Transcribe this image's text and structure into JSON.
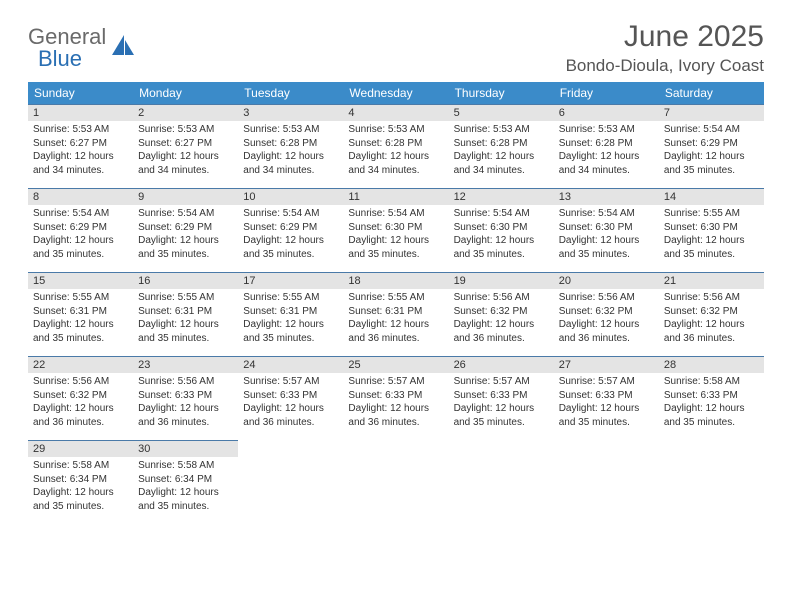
{
  "logo": {
    "text1": "General",
    "text2": "Blue"
  },
  "title": "June 2025",
  "location": "Bondo-Dioula, Ivory Coast",
  "colors": {
    "header_bg": "#3b8bc9",
    "header_text": "#ffffff",
    "daynum_bg": "#e4e4e4",
    "row_border": "#4a7aa8",
    "text": "#333333",
    "title_text": "#555555",
    "logo_gray": "#6a6a6a",
    "logo_blue": "#2a6fb3"
  },
  "typography": {
    "title_fontsize": 30,
    "location_fontsize": 17,
    "weekday_fontsize": 12,
    "daynum_fontsize": 11,
    "body_fontsize": 10
  },
  "weekdays": [
    "Sunday",
    "Monday",
    "Tuesday",
    "Wednesday",
    "Thursday",
    "Friday",
    "Saturday"
  ],
  "weeks": [
    [
      {
        "num": "1",
        "sunrise": "Sunrise: 5:53 AM",
        "sunset": "Sunset: 6:27 PM",
        "day1": "Daylight: 12 hours",
        "day2": "and 34 minutes."
      },
      {
        "num": "2",
        "sunrise": "Sunrise: 5:53 AM",
        "sunset": "Sunset: 6:27 PM",
        "day1": "Daylight: 12 hours",
        "day2": "and 34 minutes."
      },
      {
        "num": "3",
        "sunrise": "Sunrise: 5:53 AM",
        "sunset": "Sunset: 6:28 PM",
        "day1": "Daylight: 12 hours",
        "day2": "and 34 minutes."
      },
      {
        "num": "4",
        "sunrise": "Sunrise: 5:53 AM",
        "sunset": "Sunset: 6:28 PM",
        "day1": "Daylight: 12 hours",
        "day2": "and 34 minutes."
      },
      {
        "num": "5",
        "sunrise": "Sunrise: 5:53 AM",
        "sunset": "Sunset: 6:28 PM",
        "day1": "Daylight: 12 hours",
        "day2": "and 34 minutes."
      },
      {
        "num": "6",
        "sunrise": "Sunrise: 5:53 AM",
        "sunset": "Sunset: 6:28 PM",
        "day1": "Daylight: 12 hours",
        "day2": "and 34 minutes."
      },
      {
        "num": "7",
        "sunrise": "Sunrise: 5:54 AM",
        "sunset": "Sunset: 6:29 PM",
        "day1": "Daylight: 12 hours",
        "day2": "and 35 minutes."
      }
    ],
    [
      {
        "num": "8",
        "sunrise": "Sunrise: 5:54 AM",
        "sunset": "Sunset: 6:29 PM",
        "day1": "Daylight: 12 hours",
        "day2": "and 35 minutes."
      },
      {
        "num": "9",
        "sunrise": "Sunrise: 5:54 AM",
        "sunset": "Sunset: 6:29 PM",
        "day1": "Daylight: 12 hours",
        "day2": "and 35 minutes."
      },
      {
        "num": "10",
        "sunrise": "Sunrise: 5:54 AM",
        "sunset": "Sunset: 6:29 PM",
        "day1": "Daylight: 12 hours",
        "day2": "and 35 minutes."
      },
      {
        "num": "11",
        "sunrise": "Sunrise: 5:54 AM",
        "sunset": "Sunset: 6:30 PM",
        "day1": "Daylight: 12 hours",
        "day2": "and 35 minutes."
      },
      {
        "num": "12",
        "sunrise": "Sunrise: 5:54 AM",
        "sunset": "Sunset: 6:30 PM",
        "day1": "Daylight: 12 hours",
        "day2": "and 35 minutes."
      },
      {
        "num": "13",
        "sunrise": "Sunrise: 5:54 AM",
        "sunset": "Sunset: 6:30 PM",
        "day1": "Daylight: 12 hours",
        "day2": "and 35 minutes."
      },
      {
        "num": "14",
        "sunrise": "Sunrise: 5:55 AM",
        "sunset": "Sunset: 6:30 PM",
        "day1": "Daylight: 12 hours",
        "day2": "and 35 minutes."
      }
    ],
    [
      {
        "num": "15",
        "sunrise": "Sunrise: 5:55 AM",
        "sunset": "Sunset: 6:31 PM",
        "day1": "Daylight: 12 hours",
        "day2": "and 35 minutes."
      },
      {
        "num": "16",
        "sunrise": "Sunrise: 5:55 AM",
        "sunset": "Sunset: 6:31 PM",
        "day1": "Daylight: 12 hours",
        "day2": "and 35 minutes."
      },
      {
        "num": "17",
        "sunrise": "Sunrise: 5:55 AM",
        "sunset": "Sunset: 6:31 PM",
        "day1": "Daylight: 12 hours",
        "day2": "and 35 minutes."
      },
      {
        "num": "18",
        "sunrise": "Sunrise: 5:55 AM",
        "sunset": "Sunset: 6:31 PM",
        "day1": "Daylight: 12 hours",
        "day2": "and 36 minutes."
      },
      {
        "num": "19",
        "sunrise": "Sunrise: 5:56 AM",
        "sunset": "Sunset: 6:32 PM",
        "day1": "Daylight: 12 hours",
        "day2": "and 36 minutes."
      },
      {
        "num": "20",
        "sunrise": "Sunrise: 5:56 AM",
        "sunset": "Sunset: 6:32 PM",
        "day1": "Daylight: 12 hours",
        "day2": "and 36 minutes."
      },
      {
        "num": "21",
        "sunrise": "Sunrise: 5:56 AM",
        "sunset": "Sunset: 6:32 PM",
        "day1": "Daylight: 12 hours",
        "day2": "and 36 minutes."
      }
    ],
    [
      {
        "num": "22",
        "sunrise": "Sunrise: 5:56 AM",
        "sunset": "Sunset: 6:32 PM",
        "day1": "Daylight: 12 hours",
        "day2": "and 36 minutes."
      },
      {
        "num": "23",
        "sunrise": "Sunrise: 5:56 AM",
        "sunset": "Sunset: 6:33 PM",
        "day1": "Daylight: 12 hours",
        "day2": "and 36 minutes."
      },
      {
        "num": "24",
        "sunrise": "Sunrise: 5:57 AM",
        "sunset": "Sunset: 6:33 PM",
        "day1": "Daylight: 12 hours",
        "day2": "and 36 minutes."
      },
      {
        "num": "25",
        "sunrise": "Sunrise: 5:57 AM",
        "sunset": "Sunset: 6:33 PM",
        "day1": "Daylight: 12 hours",
        "day2": "and 36 minutes."
      },
      {
        "num": "26",
        "sunrise": "Sunrise: 5:57 AM",
        "sunset": "Sunset: 6:33 PM",
        "day1": "Daylight: 12 hours",
        "day2": "and 35 minutes."
      },
      {
        "num": "27",
        "sunrise": "Sunrise: 5:57 AM",
        "sunset": "Sunset: 6:33 PM",
        "day1": "Daylight: 12 hours",
        "day2": "and 35 minutes."
      },
      {
        "num": "28",
        "sunrise": "Sunrise: 5:58 AM",
        "sunset": "Sunset: 6:33 PM",
        "day1": "Daylight: 12 hours",
        "day2": "and 35 minutes."
      }
    ],
    [
      {
        "num": "29",
        "sunrise": "Sunrise: 5:58 AM",
        "sunset": "Sunset: 6:34 PM",
        "day1": "Daylight: 12 hours",
        "day2": "and 35 minutes."
      },
      {
        "num": "30",
        "sunrise": "Sunrise: 5:58 AM",
        "sunset": "Sunset: 6:34 PM",
        "day1": "Daylight: 12 hours",
        "day2": "and 35 minutes."
      },
      null,
      null,
      null,
      null,
      null
    ]
  ]
}
